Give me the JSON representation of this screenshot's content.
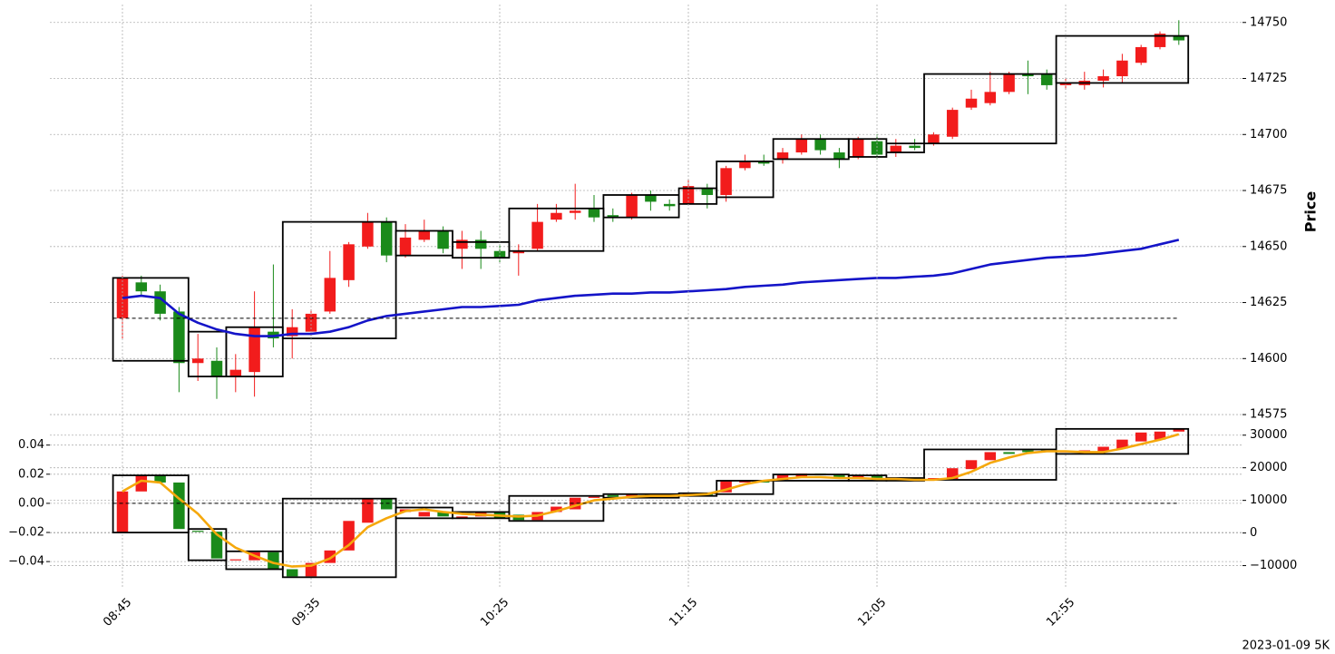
{
  "footer": "2023-01-09 5K",
  "chart_data": [
    {
      "type": "candlestick",
      "ylabel": "Price",
      "y_side": "right",
      "grid": true,
      "ylim": [
        14573,
        14758
      ],
      "yticks": [
        14575,
        14600,
        14625,
        14650,
        14675,
        14700,
        14725,
        14750
      ],
      "candles": {
        "up_color": "#f21c1c",
        "down_color": "#1a8a1a",
        "open": [
          14618,
          14634,
          14630,
          14621,
          14598,
          14599,
          14592,
          14594,
          14612,
          14610,
          14612,
          14621,
          14635,
          14650,
          14661,
          14646,
          14653,
          14657,
          14649,
          14653,
          14648,
          14647,
          14649,
          14662,
          14665,
          14667,
          14664,
          14663,
          14673,
          14669,
          14669,
          14676,
          14673,
          14685,
          14688,
          14689,
          14692,
          14698,
          14692,
          14690,
          14697,
          14692,
          14695,
          14696,
          14699,
          14712,
          14714,
          14719,
          14727,
          14727,
          14722,
          14722,
          14724,
          14726,
          14732,
          14739,
          14744
        ],
        "high": [
          14637,
          14637,
          14633,
          14623,
          14611,
          14605,
          14602,
          14630,
          14642,
          14622,
          14622,
          14648,
          14652,
          14665,
          14663,
          14660,
          14662,
          14659,
          14657,
          14657,
          14651,
          14651,
          14669,
          14669,
          14678,
          14673,
          14667,
          14674,
          14675,
          14671,
          14680,
          14678,
          14686,
          14691,
          14691,
          14694,
          14700,
          14700,
          14694,
          14699,
          14700,
          14698,
          14698,
          14701,
          14712,
          14720,
          14728,
          14728,
          14733,
          14729,
          14725,
          14728,
          14729,
          14736,
          14740,
          14746,
          14751
        ],
        "low": [
          14609,
          14628,
          14617,
          14585,
          14590,
          14582,
          14585,
          14583,
          14605,
          14600,
          14610,
          14620,
          14632,
          14649,
          14643,
          14645,
          14652,
          14647,
          14640,
          14640,
          14643,
          14637,
          14648,
          14661,
          14662,
          14661,
          14661,
          14662,
          14666,
          14666,
          14669,
          14667,
          14670,
          14684,
          14686,
          14687,
          14691,
          14691,
          14685,
          14689,
          14689,
          14690,
          14693,
          14695,
          14698,
          14711,
          14713,
          14718,
          14718,
          14720,
          14720,
          14720,
          14721,
          14723,
          14731,
          14738,
          14740
        ],
        "close": [
          14636,
          14630,
          14620,
          14598,
          14600,
          14592,
          14595,
          14614,
          14609,
          14614,
          14620,
          14636,
          14651,
          14661,
          14646,
          14654,
          14657,
          14649,
          14653,
          14649,
          14645,
          14648,
          14661,
          14665,
          14666,
          14663,
          14663,
          14673,
          14670,
          14668,
          14677,
          14673,
          14685,
          14688,
          14687,
          14692,
          14698,
          14693,
          14689,
          14698,
          14691,
          14695,
          14694,
          14700,
          14711,
          14716,
          14719,
          14727,
          14726,
          14722,
          14723,
          14724,
          14726,
          14733,
          14739,
          14745,
          14742
        ]
      },
      "series": [
        {
          "color": "#1414c8",
          "values": [
            14627,
            14628,
            14627,
            14620,
            14616,
            14613,
            14611,
            14610,
            14610,
            14611,
            14611,
            14612,
            14614,
            14617,
            14619,
            14620,
            14621,
            14622,
            14623,
            14623,
            14623.5,
            14624,
            14626,
            14627,
            14628,
            14628.5,
            14629,
            14629,
            14629.5,
            14629.5,
            14630,
            14630.5,
            14631,
            14632,
            14632.5,
            14633,
            14634,
            14634.5,
            14635,
            14635.5,
            14636,
            14636,
            14636.5,
            14637,
            14638,
            14640,
            14642,
            14643,
            14644,
            14645,
            14645.5,
            14646,
            14647,
            14648,
            14649,
            14651,
            14653
          ]
        }
      ],
      "box_color": "#000000",
      "boxes": [
        {
          "start": 0,
          "end": 3,
          "high": 14636,
          "low": 14599
        },
        {
          "start": 4,
          "end": 5,
          "high": 14612,
          "low": 14592
        },
        {
          "start": 6,
          "end": 8,
          "high": 14614,
          "low": 14592
        },
        {
          "start": 9,
          "end": 14,
          "high": 14661,
          "low": 14609
        },
        {
          "start": 15,
          "end": 17,
          "high": 14657,
          "low": 14646
        },
        {
          "start": 18,
          "end": 20,
          "high": 14652,
          "low": 14645
        },
        {
          "start": 21,
          "end": 25,
          "high": 14667,
          "low": 14648
        },
        {
          "start": 26,
          "end": 29,
          "high": 14673,
          "low": 14663
        },
        {
          "start": 30,
          "end": 31,
          "high": 14676,
          "low": 14669
        },
        {
          "start": 32,
          "end": 34,
          "high": 14688,
          "low": 14672
        },
        {
          "start": 35,
          "end": 38,
          "high": 14698,
          "low": 14689
        },
        {
          "start": 39,
          "end": 40,
          "high": 14698,
          "low": 14690
        },
        {
          "start": 41,
          "end": 42,
          "high": 14696,
          "low": 14692
        },
        {
          "start": 43,
          "end": 49,
          "high": 14727,
          "low": 14696
        },
        {
          "start": 50,
          "end": 56,
          "high": 14744,
          "low": 14723
        }
      ],
      "hline": 14618
    },
    {
      "type": "candlestick",
      "grid": true,
      "categories": [
        "08:45",
        null,
        null,
        null,
        null,
        null,
        null,
        null,
        null,
        null,
        "09:35",
        null,
        null,
        null,
        null,
        null,
        null,
        null,
        null,
        null,
        "10:25",
        null,
        null,
        null,
        null,
        null,
        null,
        null,
        null,
        null,
        "11:15",
        null,
        null,
        null,
        null,
        null,
        null,
        null,
        null,
        null,
        "12:05",
        null,
        null,
        null,
        null,
        null,
        null,
        null,
        null,
        null,
        "12:55",
        null,
        null,
        null,
        null,
        null,
        null
      ],
      "ylim": [
        -0.058,
        0.056
      ],
      "yticks": [
        {
          "value": -0.04,
          "label": "−0.04"
        },
        {
          "value": -0.02,
          "label": "−0.02"
        },
        {
          "value": 0,
          "label": "0.00"
        },
        0.02,
        0.04
      ],
      "y2lim": [
        -16800,
        34100
      ],
      "y2ticks": [
        {
          "value": -10000,
          "label": "−10000"
        },
        0,
        10000,
        20000,
        30000
      ],
      "candles": {
        "axis": "y2",
        "up_color": "#f21c1c",
        "down_color": "#1a8a1a",
        "open": [
          140,
          12740,
          17670,
          15480,
          680,
          410,
          -8360,
          -8360,
          -5890,
          -11100,
          -13290,
          -9180,
          -5350,
          3150,
          10540,
          6440,
          5070,
          6440,
          4520,
          5070,
          6440,
          5620,
          3970,
          6440,
          7260,
          10820,
          11640,
          11100,
          11920,
          11640,
          11370,
          12190,
          12470,
          15480,
          16030,
          16300,
          17120,
          18220,
          17670,
          16570,
          17670,
          16300,
          16850,
          16300,
          16570,
          19590,
          22330,
          24800,
          25340,
          25340,
          24800,
          24800,
          24800,
          25890,
          28080,
          28630,
          31100
        ],
        "close": [
          12740,
          17670,
          15480,
          1230,
          410,
          -7810,
          -8080,
          -5890,
          -11100,
          -13290,
          -9180,
          -5350,
          3700,
          10540,
          7260,
          7260,
          6440,
          5070,
          5070,
          6440,
          4520,
          3970,
          6440,
          8080,
          10820,
          11100,
          11100,
          11920,
          11640,
          11370,
          12190,
          11640,
          16030,
          16030,
          15480,
          17940,
          18220,
          17670,
          17120,
          17670,
          16570,
          16850,
          16570,
          16850,
          19860,
          22330,
          24800,
          24250,
          24800,
          24800,
          25070,
          25340,
          26440,
          28630,
          30820,
          31100,
          31920
        ]
      },
      "series": [
        {
          "color": "#f5a80c",
          "axis": "y2",
          "values": [
            12740,
            16030,
            15480,
            10540,
            5890,
            -410,
            -4520,
            -6990,
            -9180,
            -10280,
            -10000,
            -7810,
            -3700,
            1780,
            4520,
            6710,
            7260,
            6440,
            5890,
            5620,
            5340,
            5070,
            5340,
            6710,
            8360,
            10000,
            10540,
            11100,
            11370,
            11370,
            11640,
            11920,
            13290,
            14930,
            16030,
            16570,
            17120,
            17120,
            16850,
            16850,
            16570,
            16570,
            16300,
            16300,
            16850,
            18770,
            21510,
            23150,
            24520,
            25070,
            25070,
            24800,
            24800,
            25890,
            27260,
            28630,
            30270
          ]
        }
      ],
      "box_color": "#000000",
      "box_axis": "y2",
      "boxes": [
        {
          "start": 0,
          "end": 3,
          "high": 17670,
          "low": 140
        },
        {
          "start": 4,
          "end": 5,
          "high": 1230,
          "low": -8360
        },
        {
          "start": 6,
          "end": 8,
          "high": -5620,
          "low": -11100
        },
        {
          "start": 9,
          "end": 14,
          "high": 10540,
          "low": -13560
        },
        {
          "start": 15,
          "end": 17,
          "high": 7810,
          "low": 4520
        },
        {
          "start": 18,
          "end": 20,
          "high": 6440,
          "low": 4520
        },
        {
          "start": 21,
          "end": 25,
          "high": 11370,
          "low": 3700
        },
        {
          "start": 26,
          "end": 29,
          "high": 11920,
          "low": 10820
        },
        {
          "start": 30,
          "end": 31,
          "high": 12190,
          "low": 11370
        },
        {
          "start": 32,
          "end": 34,
          "high": 16030,
          "low": 11920
        },
        {
          "start": 35,
          "end": 38,
          "high": 17940,
          "low": 16030
        },
        {
          "start": 39,
          "end": 40,
          "high": 17670,
          "low": 16030
        },
        {
          "start": 41,
          "end": 42,
          "high": 16850,
          "low": 16030
        },
        {
          "start": 43,
          "end": 49,
          "high": 25620,
          "low": 16300
        },
        {
          "start": 50,
          "end": 56,
          "high": 31920,
          "low": 24250
        }
      ],
      "hline": 0
    }
  ]
}
